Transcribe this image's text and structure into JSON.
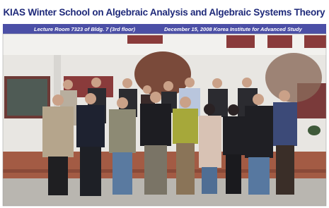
{
  "banner": {
    "title": "KIAS Winter School on Algebraic Analysis and Algebraic Systems Theory",
    "location": "Lecture Room 7323 of Bldg. 7 (3rd floor)",
    "date_line": "December 15, 2008 Korea Institute for Advanced Study"
  }
}
